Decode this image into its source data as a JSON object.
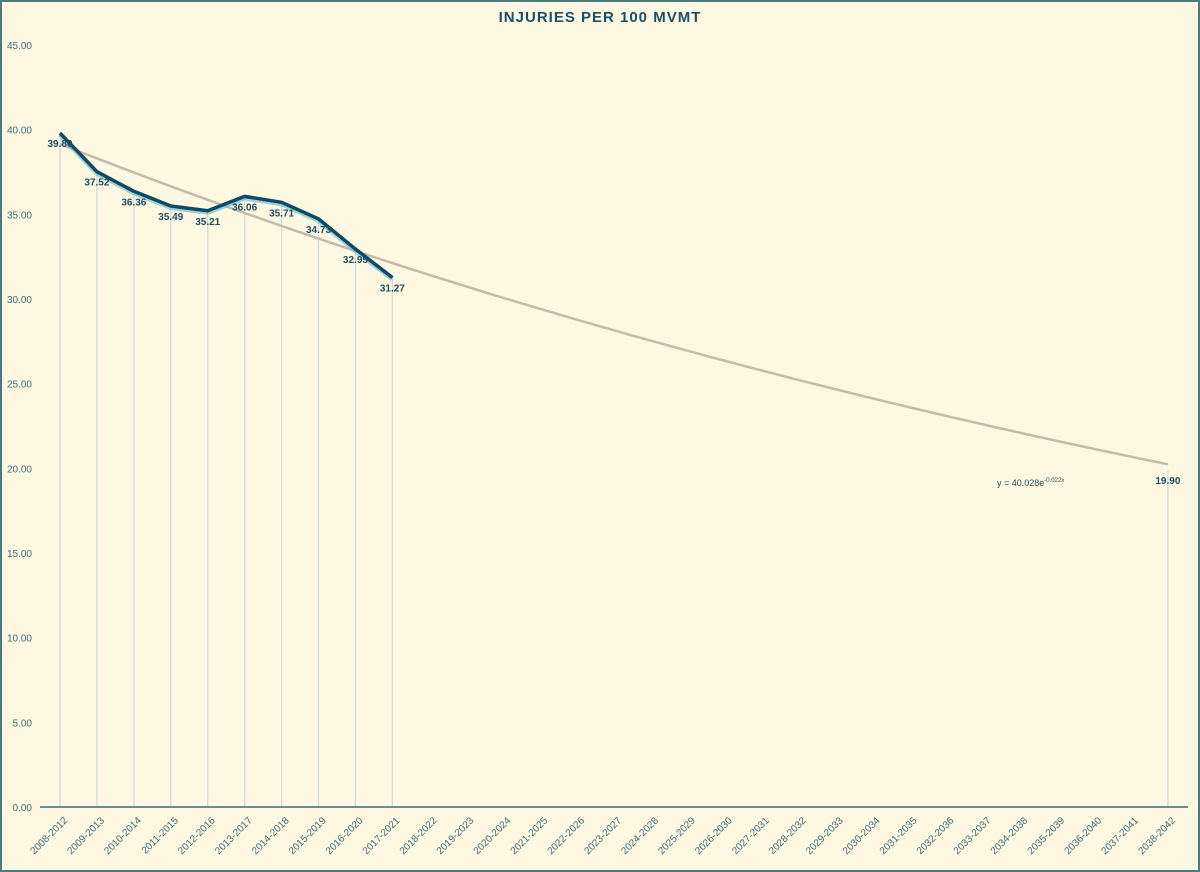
{
  "chart_data": {
    "type": "line",
    "title": "INJURIES PER 100 MVMT",
    "xlabel": "",
    "ylabel": "",
    "ylim": [
      0,
      45
    ],
    "yticks": [
      "0.00",
      "5.00",
      "10.00",
      "15.00",
      "20.00",
      "25.00",
      "30.00",
      "35.00",
      "40.00",
      "45.00"
    ],
    "grid": false,
    "legend": null,
    "categories": [
      "2008-2012",
      "2009-2013",
      "2010-2014",
      "2011-2015",
      "2012-2016",
      "2013-2017",
      "2014-2018",
      "2015-2019",
      "2016-2020",
      "2017-2021",
      "2018-2022",
      "2019-2023",
      "2020-2024",
      "2021-2025",
      "2022-2026",
      "2023-2027",
      "2024-2028",
      "2025-2029",
      "2026-2030",
      "2027-2031",
      "2028-2032",
      "2029-2033",
      "2030-2034",
      "2031-2035",
      "2032-2036",
      "2033-2037",
      "2034-2038",
      "2035-2039",
      "2036-2040",
      "2037-2041",
      "2038-2042"
    ],
    "series": [
      {
        "name": "Injuries per 100 MVMT",
        "values": [
          39.8,
          37.52,
          36.36,
          35.49,
          35.21,
          36.06,
          35.71,
          34.73,
          32.95,
          31.27,
          null,
          null,
          null,
          null,
          null,
          null,
          null,
          null,
          null,
          null,
          null,
          null,
          null,
          null,
          null,
          null,
          null,
          null,
          null,
          null,
          19.9
        ],
        "data_labels": [
          "39.80",
          "37.52",
          "36.36",
          "35.49",
          "35.21",
          "36.06",
          "35.71",
          "34.73",
          "32.95",
          "31.27",
          "",
          "",
          "",
          "",
          "",
          "",
          "",
          "",
          "",
          "",
          "",
          "",
          "",
          "",
          "",
          "",
          "",
          "",
          "",
          "",
          "19.90"
        ],
        "color": "#0d4a63"
      }
    ],
    "trendline": {
      "type": "exponential",
      "equation": "y = 40.028e",
      "exponent": "-0.022x",
      "a": 40.028,
      "b": -0.022,
      "color": "#c4bbac"
    }
  },
  "colors": {
    "background": "#fdf8e1",
    "border": "#4a7a80",
    "axis": "#3d6b78",
    "series": "#0d4a63",
    "trend": "#c4bbac",
    "drop_lines": "#cfd9e0"
  }
}
